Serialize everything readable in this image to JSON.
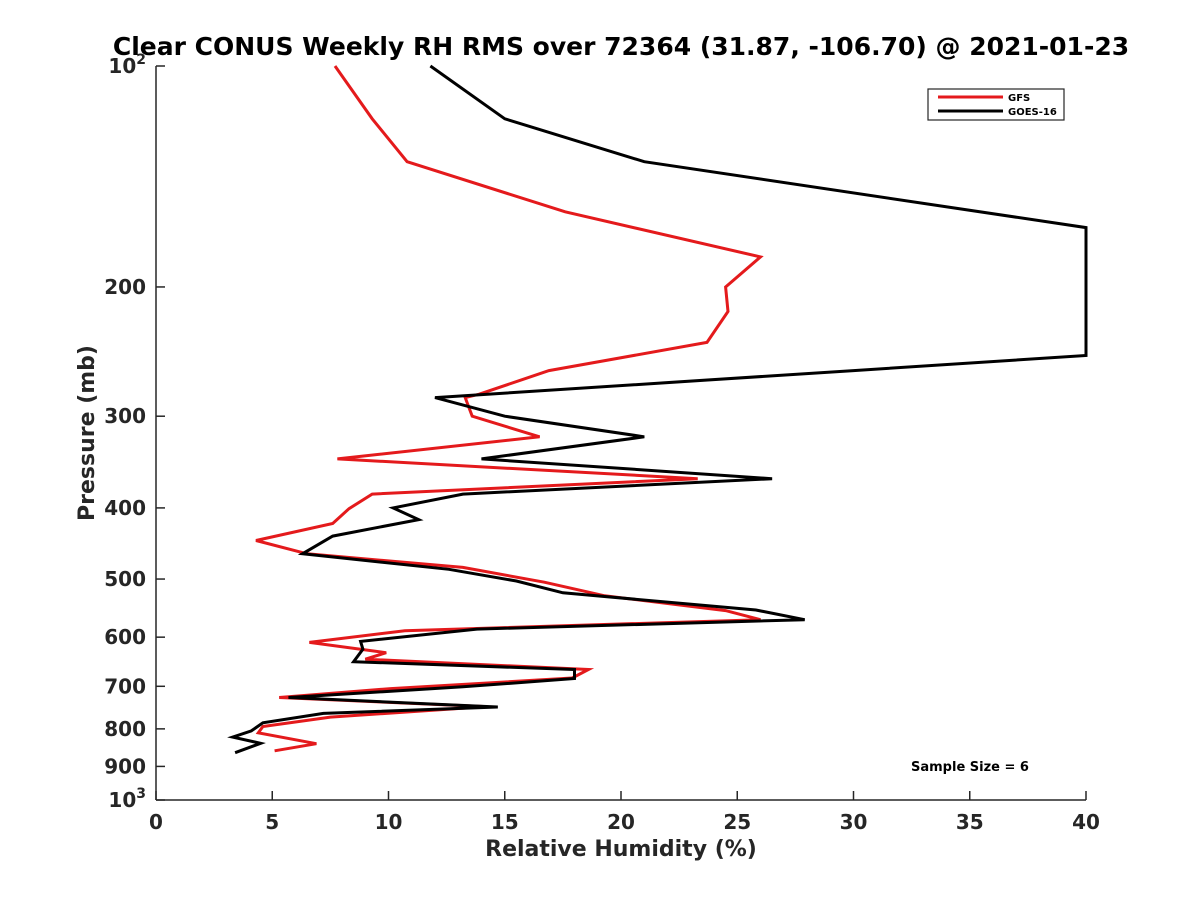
{
  "chart_data": {
    "type": "line",
    "title": "Clear CONUS Weekly RH RMS over 72364 (31.87, -106.70) @ 2021-01-23",
    "xlabel": "Relative Humidity (%)",
    "ylabel": "Pressure (mb)",
    "xlim": [
      0,
      40
    ],
    "ylim": [
      100,
      1000
    ],
    "yscale": "log",
    "y_direction": "reversed",
    "grid": false,
    "legend_position": "top-right",
    "annotation": "Sample Size = 6",
    "x_ticks": [
      {
        "value": 0,
        "label": "0"
      },
      {
        "value": 5,
        "label": "5"
      },
      {
        "value": 10,
        "label": "10"
      },
      {
        "value": 15,
        "label": "15"
      },
      {
        "value": 20,
        "label": "20"
      },
      {
        "value": 25,
        "label": "25"
      },
      {
        "value": 30,
        "label": "30"
      },
      {
        "value": 35,
        "label": "35"
      },
      {
        "value": 40,
        "label": "40"
      }
    ],
    "y_ticks": [
      {
        "value": 100,
        "base": "10",
        "exp": "2"
      },
      {
        "value": 200,
        "label": "200"
      },
      {
        "value": 300,
        "label": "300"
      },
      {
        "value": 400,
        "label": "400"
      },
      {
        "value": 500,
        "label": "500"
      },
      {
        "value": 600,
        "label": "600"
      },
      {
        "value": 700,
        "label": "700"
      },
      {
        "value": 800,
        "label": "800"
      },
      {
        "value": 900,
        "label": "900"
      },
      {
        "value": 1000,
        "base": "10",
        "exp": "3"
      }
    ],
    "series": [
      {
        "name": "GFS",
        "color": "#e41a1c",
        "points": [
          [
            7.7,
            100
          ],
          [
            9.3,
            118
          ],
          [
            10.8,
            135
          ],
          [
            17.6,
            158
          ],
          [
            26.0,
            182
          ],
          [
            24.5,
            200
          ],
          [
            24.6,
            216
          ],
          [
            23.7,
            238
          ],
          [
            16.9,
            260
          ],
          [
            13.9,
            280
          ],
          [
            13.3,
            283
          ],
          [
            13.6,
            300
          ],
          [
            16.5,
            320
          ],
          [
            7.8,
            343
          ],
          [
            23.3,
            365
          ],
          [
            9.3,
            383
          ],
          [
            8.3,
            401
          ],
          [
            7.6,
            420
          ],
          [
            4.3,
            443
          ],
          [
            6.5,
            462
          ],
          [
            13.2,
            482
          ],
          [
            16.7,
            505
          ],
          [
            19.3,
            527
          ],
          [
            24.5,
            552
          ],
          [
            26.0,
            568
          ],
          [
            10.7,
            588
          ],
          [
            6.6,
            610
          ],
          [
            9.9,
            630
          ],
          [
            9.0,
            643
          ],
          [
            18.6,
            664
          ],
          [
            17.9,
            682
          ],
          [
            10.1,
            705
          ],
          [
            5.3,
            725
          ],
          [
            14.2,
            746
          ],
          [
            7.5,
            771
          ],
          [
            4.6,
            794
          ],
          [
            4.4,
            810
          ],
          [
            6.9,
            838
          ],
          [
            5.1,
            857
          ]
        ]
      },
      {
        "name": "GOES-16",
        "color": "#000000",
        "points": [
          [
            11.8,
            100
          ],
          [
            15.0,
            118
          ],
          [
            21.0,
            135
          ],
          [
            40.0,
            166
          ],
          [
            40.0,
            248
          ],
          [
            30.0,
            260
          ],
          [
            12.0,
            283
          ],
          [
            15.0,
            300
          ],
          [
            21.0,
            320
          ],
          [
            14.0,
            343
          ],
          [
            26.5,
            365
          ],
          [
            13.2,
            383
          ],
          [
            10.2,
            400
          ],
          [
            11.3,
            415
          ],
          [
            7.6,
            437
          ],
          [
            6.3,
            462
          ],
          [
            12.6,
            485
          ],
          [
            15.5,
            503
          ],
          [
            17.5,
            522
          ],
          [
            25.8,
            551
          ],
          [
            27.9,
            568
          ],
          [
            13.8,
            585
          ],
          [
            8.8,
            608
          ],
          [
            8.9,
            623
          ],
          [
            8.5,
            648
          ],
          [
            18.0,
            664
          ],
          [
            18.0,
            683
          ],
          [
            13.2,
            701
          ],
          [
            5.7,
            725
          ],
          [
            14.7,
            747
          ],
          [
            7.2,
            762
          ],
          [
            4.6,
            785
          ],
          [
            4.1,
            805
          ],
          [
            3.3,
            821
          ],
          [
            4.5,
            837
          ],
          [
            3.4,
            862
          ]
        ]
      }
    ]
  }
}
